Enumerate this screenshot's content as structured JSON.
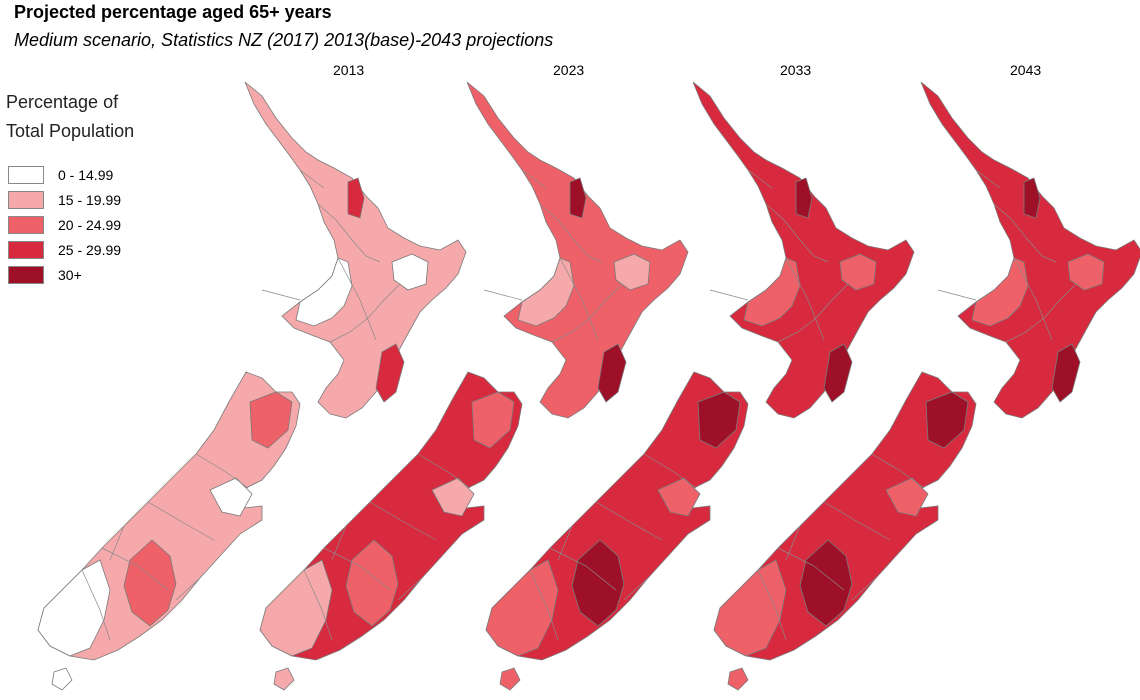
{
  "title": "Projected percentage aged 65+ years",
  "subtitle": "Medium scenario, Statistics NZ (2017) 2013(base)-2043 projections",
  "legend": {
    "title_line1": "Percentage of",
    "title_line2": "Total Population",
    "items": [
      {
        "label": "0 - 14.99",
        "color": "#ffffff"
      },
      {
        "label": "15 - 19.99",
        "color": "#f6a9ab"
      },
      {
        "label": "20 - 24.99",
        "color": "#ef6168"
      },
      {
        "label": "25 - 29.99",
        "color": "#d72a3e"
      },
      {
        "label": "30+",
        "color": "#9d1028"
      }
    ]
  },
  "maps": [
    {
      "year": "2013",
      "colors": {
        "north": "#f6a9ab",
        "north_alt": "#ffffff",
        "east": "#d72a3e",
        "south": "#f6a9ab",
        "south_alt": "#ffffff",
        "south_mid": "#ef6168"
      }
    },
    {
      "year": "2023",
      "colors": {
        "north": "#ef6168",
        "north_alt": "#f6a9ab",
        "east": "#9d1028",
        "south": "#d72a3e",
        "south_alt": "#f6a9ab",
        "south_mid": "#ef6168"
      }
    },
    {
      "year": "2033",
      "colors": {
        "north": "#d72a3e",
        "north_alt": "#ef6168",
        "east": "#9d1028",
        "south": "#d72a3e",
        "south_alt": "#ef6168",
        "south_mid": "#9d1028"
      }
    },
    {
      "year": "2043",
      "colors": {
        "north": "#d72a3e",
        "north_alt": "#ef6168",
        "east": "#9d1028",
        "south": "#d72a3e",
        "south_alt": "#ef6168",
        "south_mid": "#9d1028"
      }
    }
  ]
}
